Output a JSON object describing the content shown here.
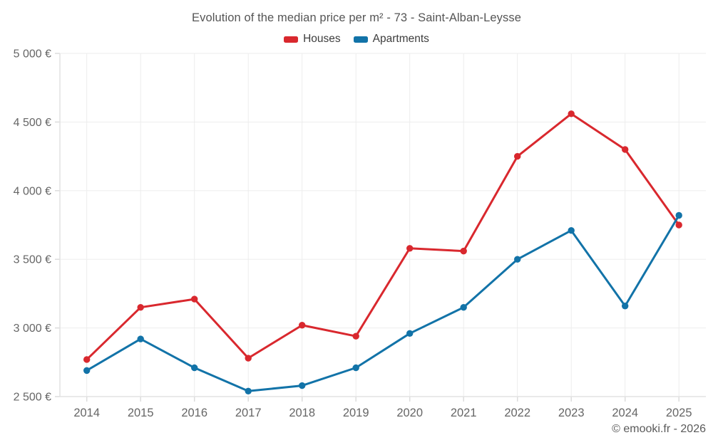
{
  "chart": {
    "title": "Evolution of the median price per m² - 73 - Saint-Alban-Leysse"
  },
  "footer": {
    "credit": "© emooki.fr - 2026"
  },
  "colors": {
    "houses": "#d9282e",
    "apartments": "#1273a8",
    "gridline": "#ededed",
    "axis_line": "#e2e2e2",
    "tick_mark": "#dcdcdc",
    "tick_text": "#666666",
    "title_text": "#555555",
    "legend_text": "#3d3d3d",
    "footer_text": "#5a5a5a",
    "background": "#ffffff"
  },
  "chart_data": {
    "type": "line",
    "title": "Evolution of the median price per m² - 73 - Saint-Alban-Leysse",
    "x": [
      "2014",
      "2015",
      "2016",
      "2017",
      "2018",
      "2019",
      "2020",
      "2021",
      "2022",
      "2023",
      "2024",
      "2025"
    ],
    "series": [
      {
        "name": "Houses",
        "color": "#d9282e",
        "values": [
          2770,
          3150,
          3210,
          2780,
          3020,
          2940,
          3580,
          3560,
          4250,
          4560,
          4300,
          3750
        ]
      },
      {
        "name": "Apartments",
        "color": "#1273a8",
        "values": [
          2690,
          2920,
          2710,
          2540,
          2580,
          2710,
          2960,
          3150,
          3500,
          3710,
          3160,
          3820
        ]
      }
    ],
    "ylabel": "",
    "xlabel": "",
    "ylim": [
      2500,
      5000
    ],
    "y_ticks": [
      {
        "value": 2500,
        "label": "2 500 €"
      },
      {
        "value": 3000,
        "label": "3 000 €"
      },
      {
        "value": 3500,
        "label": "3 500 €"
      },
      {
        "value": 4000,
        "label": "4 000 €"
      },
      {
        "value": 4500,
        "label": "4 500 €"
      },
      {
        "value": 5000,
        "label": "5 000 €"
      }
    ],
    "grid": true,
    "legend_position": "top"
  }
}
